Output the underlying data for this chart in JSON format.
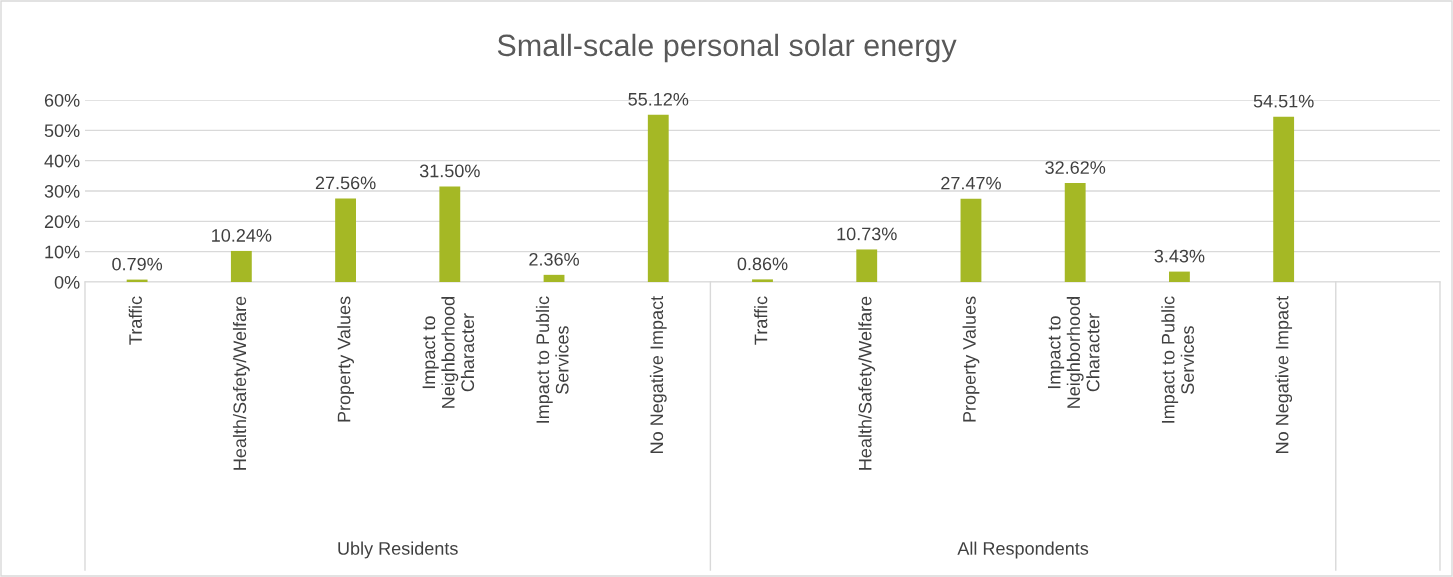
{
  "chart_data": {
    "type": "bar",
    "title": "Small-scale personal solar energy",
    "categories": [
      "Traffic",
      "Health/Safety/Welfare",
      "Property Values",
      "Impact to\nNeighborhood\nCharacter",
      "Impact to Public\nServices",
      "No Negative Impact",
      "Traffic",
      "Health/Safety/Welfare",
      "Property Values",
      "Impact to\nNeighborhood\nCharacter",
      "Impact to Public\nServices",
      "No Negative Impact",
      null
    ],
    "values": [
      0.79,
      10.24,
      27.56,
      31.5,
      2.36,
      55.12,
      0.86,
      10.73,
      27.47,
      32.62,
      3.43,
      54.51,
      null
    ],
    "value_labels": [
      "0.79%",
      "10.24%",
      "27.56%",
      "31.50%",
      "2.36%",
      "55.12%",
      "0.86%",
      "10.73%",
      "27.47%",
      "32.62%",
      "3.43%",
      "54.51%",
      null
    ],
    "color": "#a5b825",
    "ylim": [
      0,
      60
    ],
    "yticks": [
      {
        "value": 0,
        "label": "0%"
      },
      {
        "value": 10,
        "label": "10%"
      },
      {
        "value": 20,
        "label": "20%"
      },
      {
        "value": 30,
        "label": "30%"
      },
      {
        "value": 40,
        "label": "40%"
      },
      {
        "value": 50,
        "label": "50%"
      },
      {
        "value": 60,
        "label": "60%"
      }
    ],
    "grid": "y",
    "annotations": [
      "Ubly Residents",
      "All Respondents"
    ]
  }
}
